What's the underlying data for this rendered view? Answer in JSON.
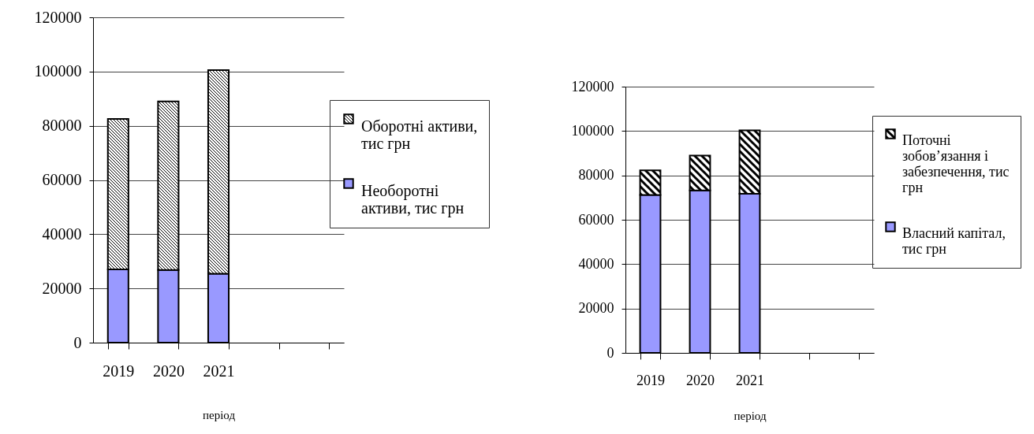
{
  "chart_data": [
    {
      "type": "bar",
      "stacked": true,
      "categories": [
        "2019",
        "2020",
        "2021",
        null,
        null
      ],
      "xlabel": "період",
      "ylim": [
        0,
        120000
      ],
      "yticks": [
        0,
        20000,
        40000,
        60000,
        80000,
        100000,
        120000
      ],
      "grid": "y",
      "legend": "right",
      "series": [
        {
          "name": "Необоротні активи, тис грн",
          "color": "#9999ff",
          "values": [
            27000,
            26800,
            25400,
            null,
            null
          ]
        },
        {
          "name": "Оборотні активи, тис грн",
          "color": "#000000",
          "values": [
            55500,
            62200,
            75100,
            null,
            null
          ]
        }
      ]
    },
    {
      "type": "bar",
      "stacked": true,
      "categories": [
        "2019",
        "2020",
        "2021",
        null,
        null
      ],
      "xlabel": "період",
      "ylim": [
        0,
        120000
      ],
      "yticks": [
        0,
        20000,
        40000,
        60000,
        80000,
        100000,
        120000
      ],
      "grid": "y",
      "legend": "right",
      "series": [
        {
          "name": "Власний капітал, тис грн",
          "color": "#9999ff",
          "values": [
            71200,
            73200,
            71700,
            null,
            null
          ]
        },
        {
          "name": "Поточні зобов’язання і забезпечення, тис грн",
          "color": "#000000",
          "values": [
            11100,
            15700,
            28600,
            null,
            null
          ]
        }
      ]
    }
  ]
}
